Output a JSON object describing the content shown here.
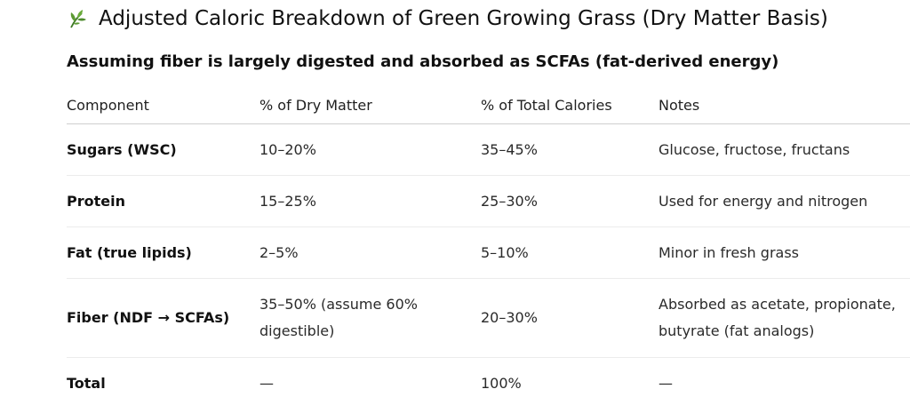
{
  "header": {
    "title": "Adjusted Caloric Breakdown of Green Growing Grass (Dry Matter Basis)",
    "title_icon": "herb-leaf-icon",
    "subtitle": "Assuming fiber is largely digested and absorbed as SCFAs (fat-derived energy)"
  },
  "table": {
    "headers": [
      "Component",
      "% of Dry Matter",
      "% of Total Calories",
      "Notes"
    ],
    "rows": [
      {
        "component": "Sugars (WSC)",
        "dry_matter": "10–20%",
        "calories": "35–45%",
        "notes": "Glucose, fructose, fructans"
      },
      {
        "component": "Protein",
        "dry_matter": "15–25%",
        "calories": "25–30%",
        "notes": "Used for energy and nitrogen"
      },
      {
        "component": "Fat (true lipids)",
        "dry_matter": "2–5%",
        "calories": "5–10%",
        "notes": "Minor in fresh grass"
      },
      {
        "component": "Fiber (NDF → SCFAs)",
        "dry_matter": "35–50% (assume 60% digestible)",
        "calories": "20–30%",
        "notes": "Absorbed as acetate, propionate, butyrate (fat analogs)"
      },
      {
        "component": "Total",
        "dry_matter": "—",
        "calories": "100%",
        "notes": "—"
      }
    ]
  },
  "colors": {
    "text": "#1f1f1f",
    "leaf_green": "#4e8a2e",
    "divider": "#ececec"
  }
}
